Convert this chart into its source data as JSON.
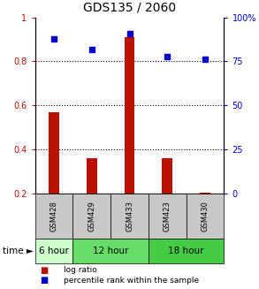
{
  "title": "GDS135 / 2060",
  "samples": [
    "GSM428",
    "GSM429",
    "GSM433",
    "GSM423",
    "GSM430"
  ],
  "log_ratio": [
    0.57,
    0.36,
    0.91,
    0.36,
    0.205
  ],
  "percentile_rank_pct": [
    88,
    82,
    91,
    78,
    76
  ],
  "bar_color": "#bb1100",
  "dot_color": "#0000cc",
  "ylim_left": [
    0.2,
    1.0
  ],
  "ylim_right": [
    0,
    100
  ],
  "yticks_left": [
    0.2,
    0.4,
    0.6,
    0.8,
    1.0
  ],
  "ytick_labels_left": [
    "0.2",
    "0.4",
    "0.6",
    "0.8",
    "1"
  ],
  "yticks_right": [
    0,
    25,
    50,
    75,
    100
  ],
  "ytick_labels_right": [
    "0",
    "25",
    "50",
    "75",
    "100%"
  ],
  "grid_lines": [
    0.4,
    0.6,
    0.8
  ],
  "label_bg_color": "#c8c8c8",
  "time_groups": [
    {
      "label": "6 hour",
      "start": 0,
      "end": 1,
      "color": "#ccffcc"
    },
    {
      "label": "12 hour",
      "start": 1,
      "end": 3,
      "color": "#66dd66"
    },
    {
      "label": "18 hour",
      "start": 3,
      "end": 5,
      "color": "#44cc44"
    }
  ],
  "legend_items": [
    {
      "label": "log ratio",
      "color": "#bb1100"
    },
    {
      "label": "percentile rank within the sample",
      "color": "#0000cc"
    }
  ],
  "bar_width": 0.28
}
